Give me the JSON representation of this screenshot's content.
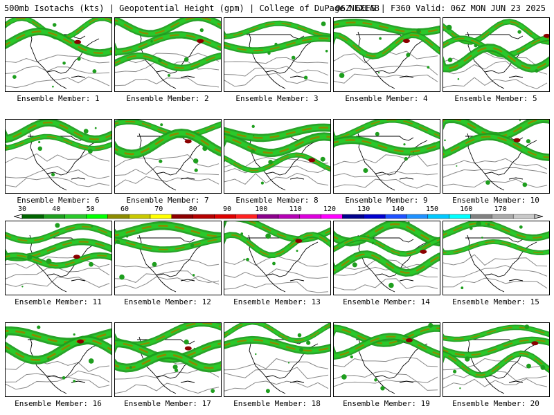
{
  "header": {
    "left": "500mb Isotachs (kts) | Geopotential Height (gpm) | College of DuPage NEXLAB",
    "right": "06Z GEFS | F360 Valid: 06Z MON JUN 23 2025"
  },
  "panels": [
    {
      "label": "Ensemble Member: 1"
    },
    {
      "label": "Ensemble Member: 2"
    },
    {
      "label": "Ensemble Member: 3"
    },
    {
      "label": "Ensemble Member: 4"
    },
    {
      "label": "Ensemble Member: 5"
    },
    {
      "label": "Ensemble Member: 6"
    },
    {
      "label": "Ensemble Member: 7"
    },
    {
      "label": "Ensemble Member: 8"
    },
    {
      "label": "Ensemble Member: 9"
    },
    {
      "label": "Ensemble Member: 10"
    },
    {
      "label": "Ensemble Member: 11"
    },
    {
      "label": "Ensemble Member: 12"
    },
    {
      "label": "Ensemble Member: 13"
    },
    {
      "label": "Ensemble Member: 14"
    },
    {
      "label": "Ensemble Member: 15"
    },
    {
      "label": "Ensemble Member: 16"
    },
    {
      "label": "Ensemble Member: 17"
    },
    {
      "label": "Ensemble Member: 18"
    },
    {
      "label": "Ensemble Member: 19"
    },
    {
      "label": "Ensemble Member: 20"
    }
  ],
  "colorbar": {
    "labels": [
      "30",
      "40",
      "50",
      "60",
      "70",
      "80",
      "90",
      "100",
      "110",
      "120",
      "130",
      "140",
      "150",
      "160",
      "170"
    ],
    "colors": [
      "#006400",
      "#1e9e1e",
      "#2ac82a",
      "#00ff00",
      "#8b8b00",
      "#c8c800",
      "#ffff00",
      "#8b0000",
      "#b40000",
      "#dc0000",
      "#ff2020",
      "#8b008b",
      "#b400b4",
      "#dc00dc",
      "#ff00ff",
      "#00008b",
      "#0000cd",
      "#1e50ff",
      "#1e90ff",
      "#00c8ff",
      "#00ffff",
      "#808080",
      "#a9a9a9",
      "#c8c8c8"
    ]
  }
}
